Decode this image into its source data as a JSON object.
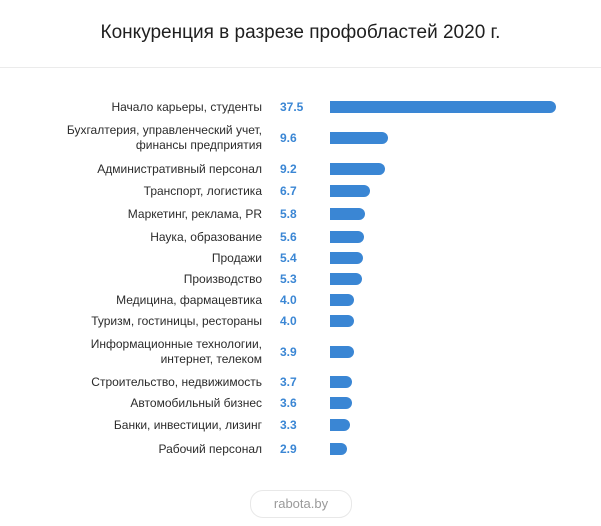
{
  "title": "Конкуренция в разрезе профобластей 2020 г.",
  "source": "rabota.by",
  "colors": {
    "bar": "#3a86d4",
    "value_text": "#3a86d4",
    "text": "#2b2b2b"
  },
  "chart_data": {
    "type": "bar",
    "orientation": "horizontal",
    "title": "Конкуренция в разрезе профобластей 2020 г.",
    "categories": [
      [
        "Начало карьеры, студенты"
      ],
      [
        "Бухгалтерия, управленческий учет,",
        "финансы предприятия"
      ],
      [
        "Административный персонал"
      ],
      [
        "Транспорт, логистика"
      ],
      [
        "Маркетинг, реклама, PR"
      ],
      [
        "Наука, образование"
      ],
      [
        "Продажи"
      ],
      [
        "Производство"
      ],
      [
        "Медицина, фармацевтика"
      ],
      [
        "Туризм, гостиницы, рестораны"
      ],
      [
        "Информационные технологии,",
        "интернет, телеком"
      ],
      [
        "Строительство, недвижимость"
      ],
      [
        "Автомобильный бизнес"
      ],
      [
        "Банки, инвестиции, лизинг"
      ],
      [
        "Рабочий персонал"
      ]
    ],
    "values": [
      37.5,
      9.6,
      9.2,
      6.7,
      5.8,
      5.6,
      5.4,
      5.3,
      4.0,
      4.0,
      3.9,
      3.7,
      3.6,
      3.3,
      2.9
    ],
    "value_labels": [
      "37.5",
      "9.6",
      "9.2",
      "6.7",
      "5.8",
      "5.6",
      "5.4",
      "5.3",
      "4.0",
      "4.0",
      "3.9",
      "3.7",
      "3.6",
      "3.3",
      "2.9"
    ],
    "xlim": [
      0,
      37.5
    ],
    "grid": false,
    "legend": "none"
  }
}
